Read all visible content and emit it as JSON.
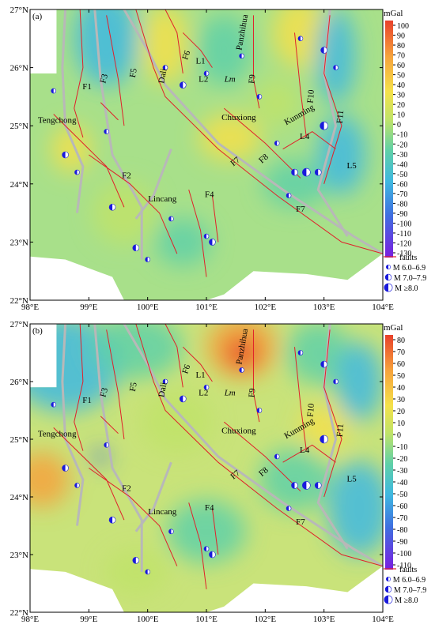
{
  "panels": [
    {
      "label": "(a)",
      "unit": "mGal",
      "colorbar_ticks": [
        100,
        90,
        80,
        70,
        60,
        50,
        40,
        30,
        20,
        10,
        0,
        -10,
        -20,
        -30,
        -40,
        -50,
        -60,
        -70,
        -80,
        -90,
        -100,
        -110,
        -120,
        -130
      ]
    },
    {
      "label": "(b)",
      "unit": "mGal",
      "colorbar_ticks": [
        80,
        70,
        60,
        50,
        40,
        30,
        20,
        10,
        0,
        -10,
        -20,
        -30,
        -40,
        -50,
        -60,
        -70,
        -80,
        -90,
        -100,
        -110
      ]
    }
  ],
  "axes": {
    "xticks": [
      {
        "value": 98,
        "label": "98°E"
      },
      {
        "value": 99,
        "label": "99°E"
      },
      {
        "value": 100,
        "label": "100°E"
      },
      {
        "value": 101,
        "label": "101°E"
      },
      {
        "value": 102,
        "label": "102°E"
      },
      {
        "value": 103,
        "label": "103°E"
      },
      {
        "value": 104,
        "label": "104°E"
      }
    ],
    "yticks": [
      {
        "value": 27,
        "label": "27°N"
      },
      {
        "value": 26,
        "label": "26°N"
      },
      {
        "value": 25,
        "label": "25°N"
      },
      {
        "value": 24,
        "label": "24°N"
      },
      {
        "value": 23,
        "label": "23°N"
      },
      {
        "value": 22,
        "label": "22°N"
      }
    ]
  },
  "map_labels": [
    "Tengchong",
    "Dali",
    "Lincang",
    "Chuxiong",
    "Kunming",
    "Panzhihua",
    "L1",
    "L2",
    "Lm",
    "L4",
    "L5",
    "F1",
    "F2",
    "F3",
    "F4",
    "F5",
    "F6",
    "F7",
    "F7",
    "F8",
    "F9",
    "F10",
    "F11"
  ],
  "legend": [
    "faults",
    "M 6.0–6.9",
    "M 7.0–7.9",
    "M ≥8.0"
  ]
}
